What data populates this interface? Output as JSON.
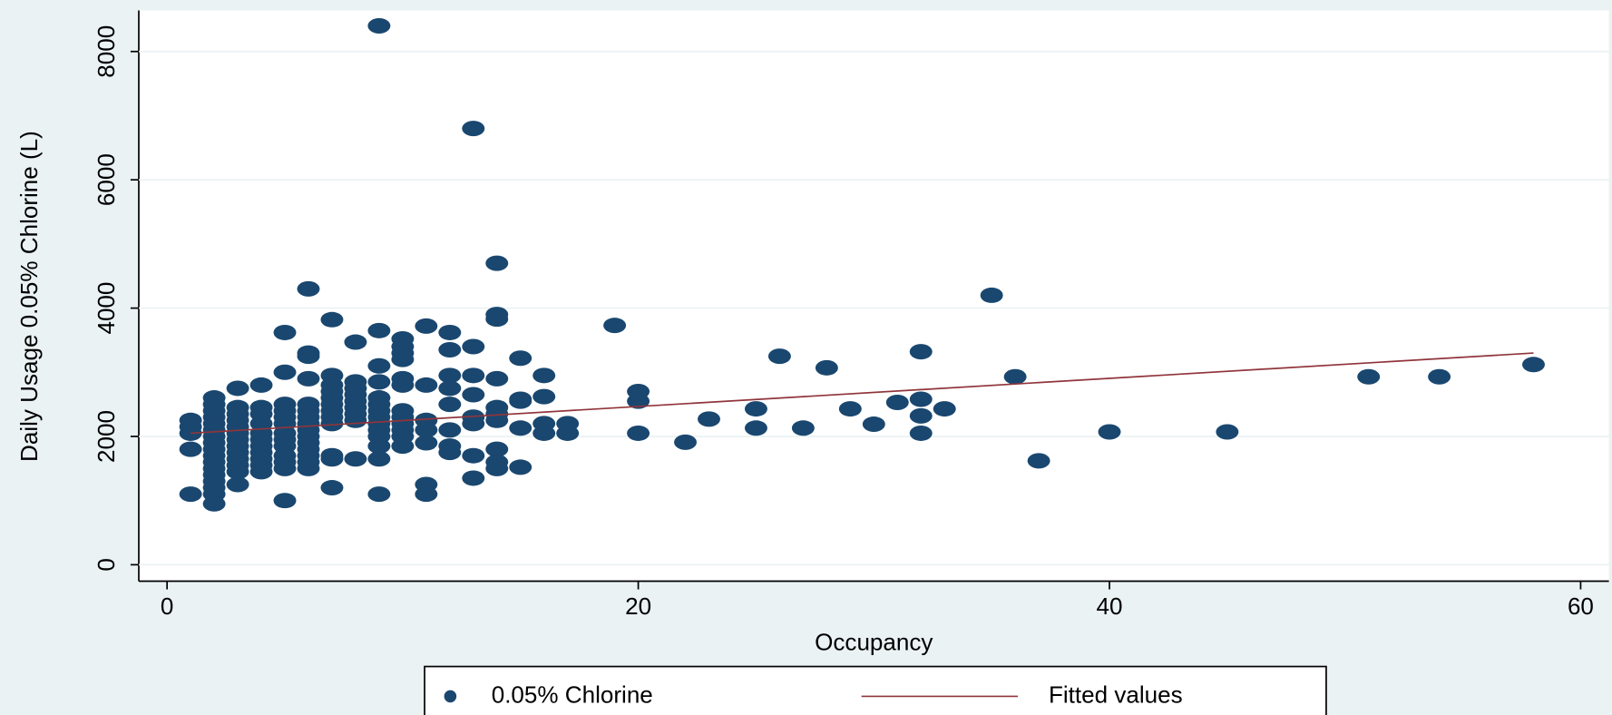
{
  "chart_data": {
    "type": "scatter",
    "x_label": "Occupancy",
    "y_label": "Daily Usage 0.05% Chlorine (L)",
    "xlim": [
      -1.2,
      61.2
    ],
    "ylim": [
      -256,
      8640
    ],
    "xticks": [
      0,
      20,
      40,
      60
    ],
    "yticks": [
      0,
      2000,
      4000,
      6000,
      8000
    ],
    "grid": true,
    "legend_position": "bottom",
    "series": [
      {
        "name": "0.05% Chlorine",
        "type": "scatter",
        "color": "#1a476f",
        "x": [
          1,
          1,
          1,
          1,
          1,
          2,
          2,
          2,
          2,
          2,
          2,
          2,
          2,
          2,
          2,
          2,
          2,
          2,
          2,
          2,
          2,
          2,
          3,
          3,
          3,
          3,
          3,
          3,
          3,
          3,
          3,
          3,
          3,
          3,
          3,
          4,
          4,
          4,
          4,
          4,
          4,
          4,
          4,
          4,
          4,
          4,
          5,
          5,
          5,
          5,
          5,
          5,
          5,
          5,
          5,
          5,
          5,
          5,
          5,
          6,
          6,
          6,
          6,
          6,
          6,
          6,
          6,
          6,
          6,
          6,
          6,
          6,
          6,
          6,
          7,
          7,
          7,
          7,
          7,
          7,
          7,
          7,
          7,
          7,
          7,
          7,
          8,
          8,
          8,
          8,
          8,
          8,
          8,
          8,
          8,
          9,
          9,
          9,
          9,
          9,
          9,
          9,
          9,
          9,
          9,
          9,
          9,
          9,
          9,
          10,
          10,
          10,
          10,
          10,
          10,
          10,
          10,
          10,
          10,
          10,
          10,
          11,
          11,
          11,
          11,
          11,
          11,
          11,
          12,
          12,
          12,
          12,
          12,
          12,
          12,
          12,
          13,
          13,
          13,
          13,
          13,
          13,
          13,
          13,
          14,
          14,
          14,
          14,
          14,
          14,
          14,
          14,
          14,
          14,
          15,
          15,
          15,
          15,
          15,
          16,
          16,
          16,
          16,
          17,
          17,
          19,
          20,
          20,
          20,
          22,
          23,
          25,
          25,
          26,
          27,
          28,
          29,
          30,
          31,
          32,
          32,
          32,
          32,
          33,
          35,
          36,
          37,
          40,
          45,
          51,
          54,
          58
        ],
        "values": [
          2250,
          2150,
          2050,
          1800,
          1100,
          2600,
          2500,
          2400,
          2300,
          2200,
          2100,
          2000,
          1900,
          1800,
          1700,
          1600,
          1500,
          1400,
          1300,
          1200,
          1100,
          950,
          2750,
          2450,
          2350,
          2250,
          2150,
          2050,
          1950,
          1850,
          1750,
          1650,
          1550,
          1450,
          1250,
          2800,
          2450,
          2350,
          2200,
          2050,
          1950,
          1850,
          1750,
          1650,
          1550,
          1450,
          3620,
          3000,
          2500,
          2400,
          2300,
          2200,
          2050,
          1950,
          1850,
          1700,
          1600,
          1500,
          1000,
          4300,
          3300,
          3250,
          2900,
          2500,
          2400,
          2300,
          2200,
          2100,
          2000,
          1900,
          1800,
          1700,
          1600,
          1500,
          3820,
          2950,
          2800,
          2700,
          2600,
          2500,
          2400,
          2300,
          2200,
          1700,
          1650,
          1200,
          3470,
          2850,
          2750,
          2650,
          2550,
          2450,
          2350,
          2250,
          1650,
          8400,
          3650,
          3100,
          2850,
          2600,
          2500,
          2400,
          2300,
          2200,
          2100,
          2000,
          1850,
          1650,
          1100,
          3520,
          3400,
          3300,
          3200,
          2900,
          2800,
          2400,
          2300,
          2200,
          2100,
          2000,
          1850,
          3720,
          2800,
          2250,
          2100,
          1900,
          1250,
          1100,
          3620,
          3350,
          2950,
          2750,
          2500,
          2100,
          1850,
          1750,
          6800,
          3400,
          2950,
          2650,
          2300,
          2200,
          1700,
          1350,
          4700,
          3900,
          3830,
          2900,
          2450,
          2350,
          2250,
          1800,
          1600,
          1500,
          3220,
          2580,
          2550,
          2130,
          1520,
          2950,
          2620,
          2200,
          2050,
          2200,
          2050,
          3730,
          2700,
          2550,
          2050,
          1910,
          2270,
          2430,
          2130,
          3250,
          2130,
          3070,
          2430,
          2190,
          2530,
          3320,
          2580,
          2320,
          2050,
          2430,
          4200,
          2930,
          1620,
          2070,
          2070,
          2930,
          2930,
          3120
        ]
      },
      {
        "name": "Fitted values",
        "type": "line",
        "color": "#90353b",
        "x": [
          1,
          58
        ],
        "values": [
          2050,
          3300
        ]
      }
    ]
  }
}
